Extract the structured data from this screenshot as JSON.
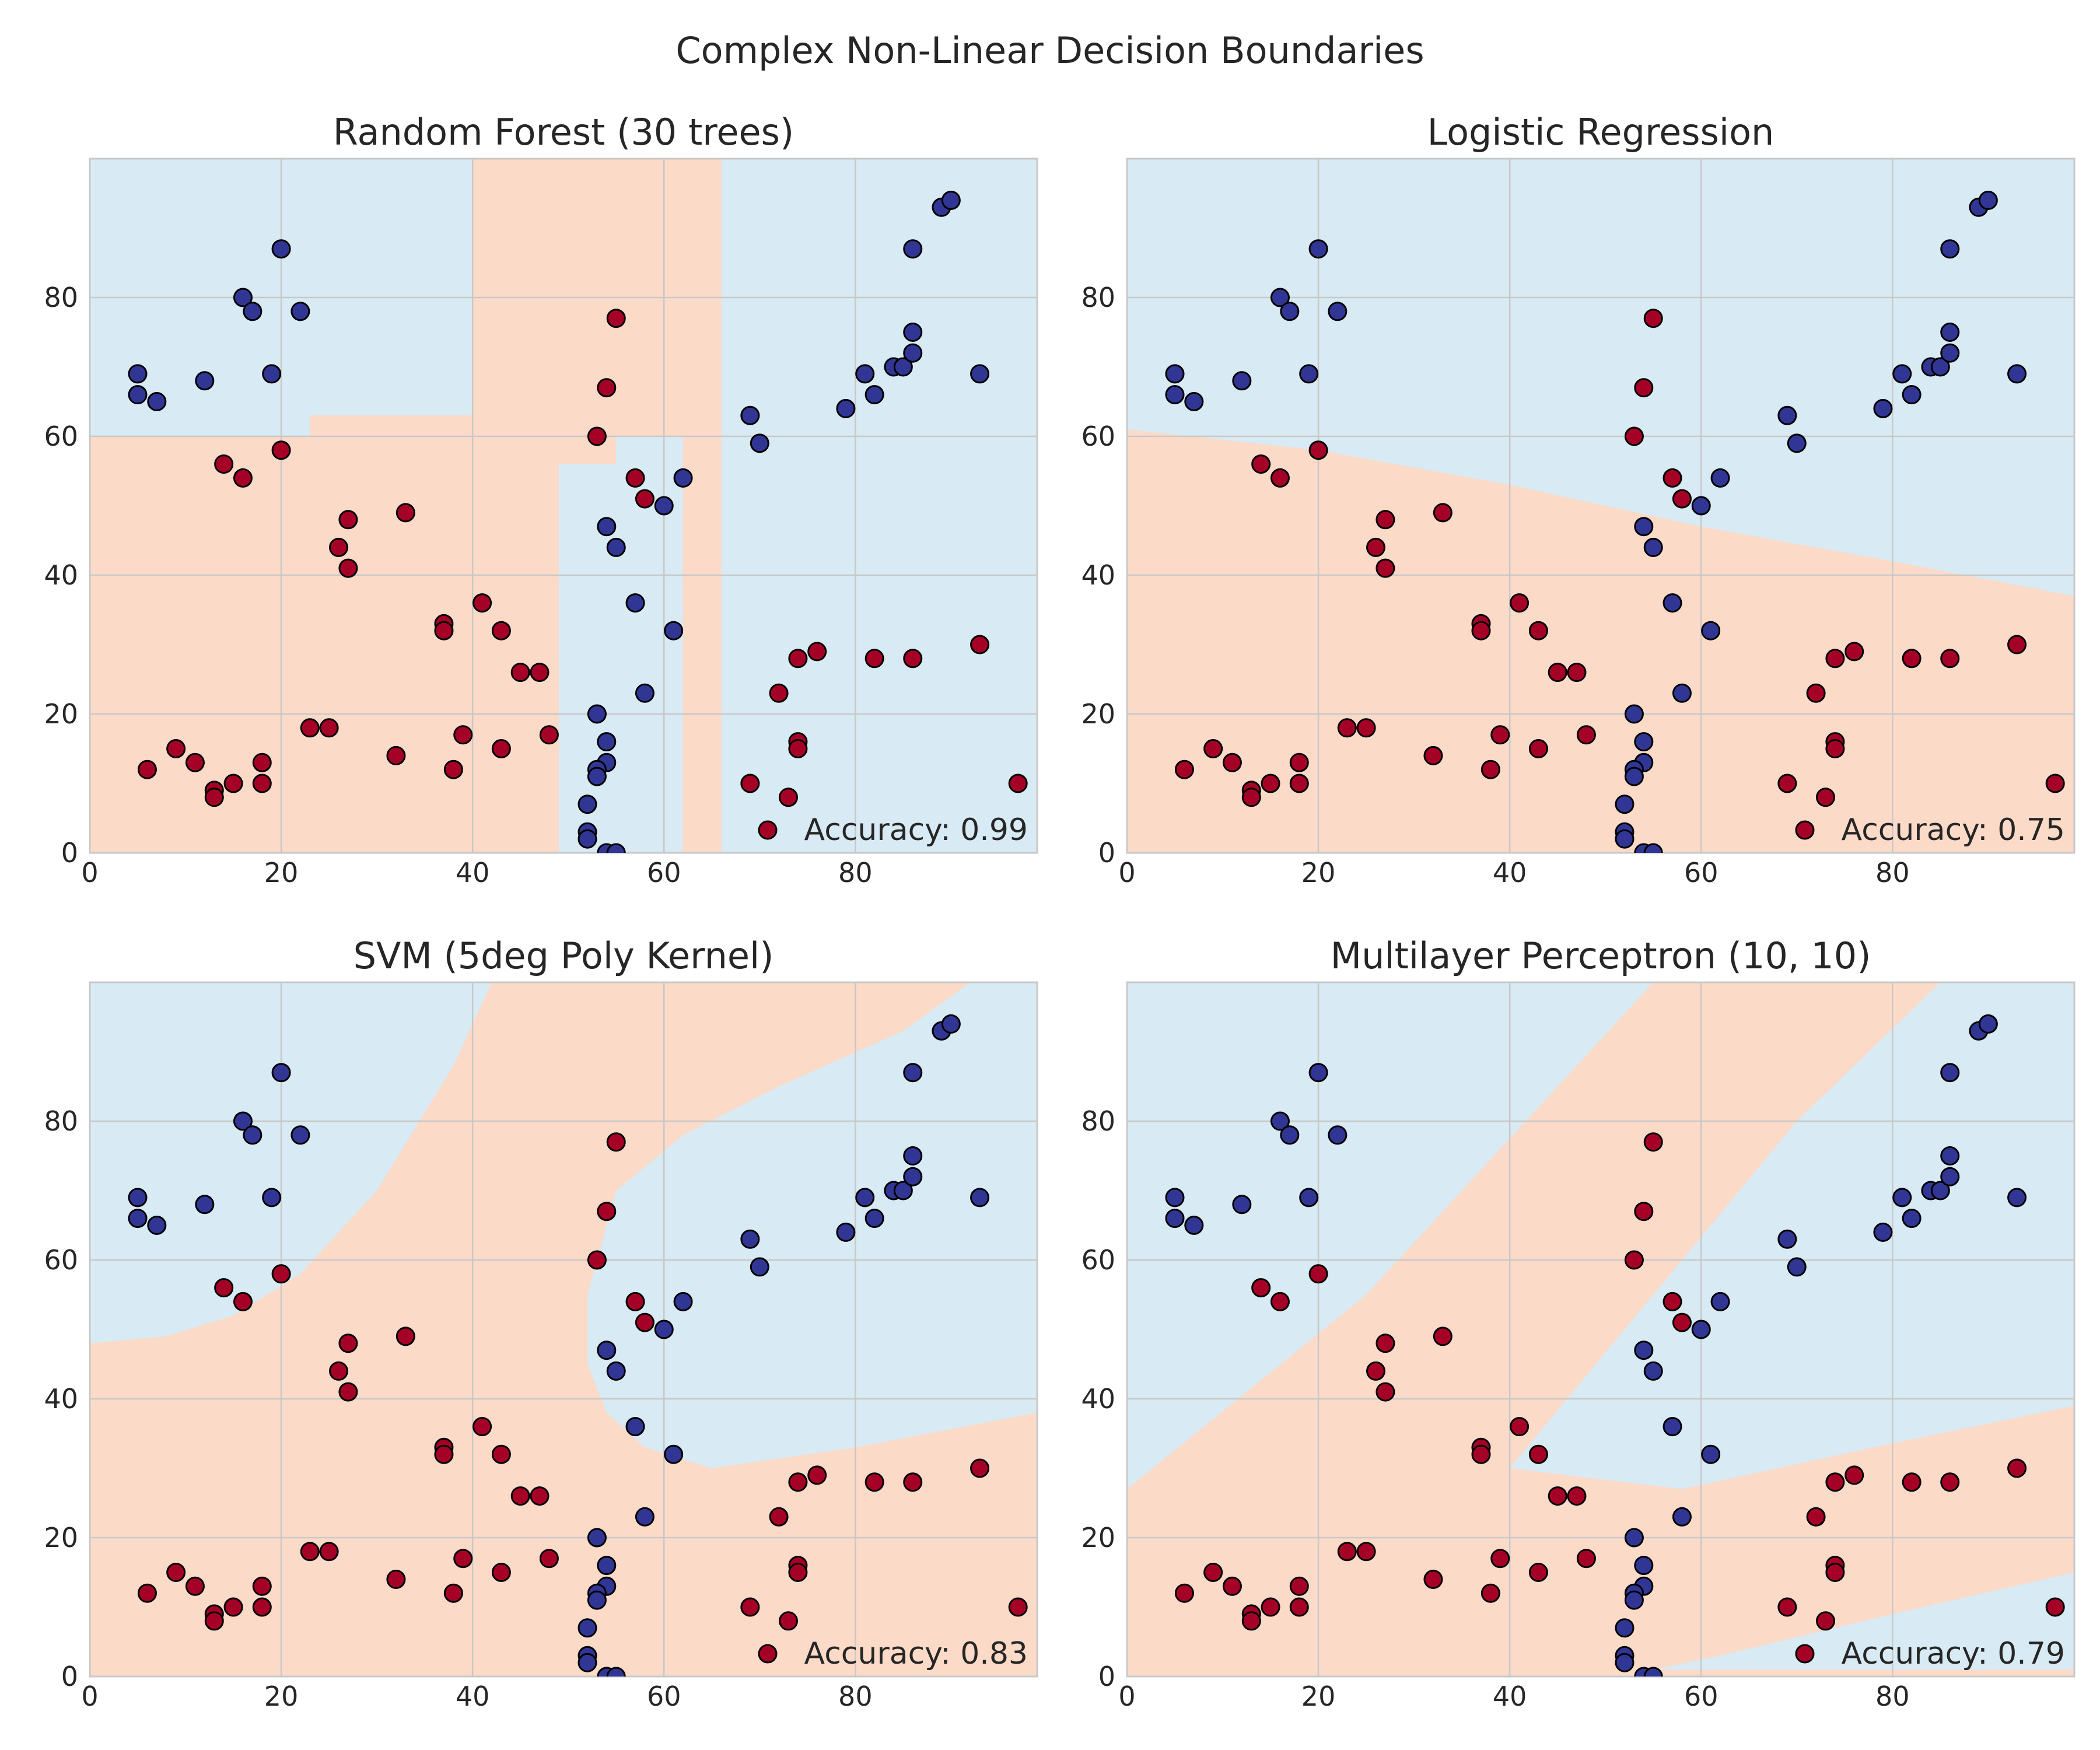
{
  "figure_title": "Complex Non-Linear Decision Boundaries",
  "colors": {
    "class0_region": "#d8eaf3",
    "class1_region": "#fcdac8",
    "class0_point": "#313695",
    "class1_point": "#a50026",
    "grid": "#c8c8c8",
    "spine": "#c8c8c8"
  },
  "legend_placement": "lower-right",
  "chart_data": [
    {
      "type": "scatter",
      "title": "Random Forest (30 trees)",
      "accuracy_label": "Accuracy: 0.99",
      "xlim": [
        0,
        99
      ],
      "ylim": [
        0,
        100
      ],
      "xticks": [
        "0",
        "20",
        "40",
        "60",
        "80"
      ],
      "yticks": [
        "0",
        "20",
        "40",
        "60",
        "80"
      ],
      "xlabel": "",
      "ylabel": "",
      "grid": true,
      "boundary": "rf"
    },
    {
      "type": "scatter",
      "title": "Logistic Regression",
      "accuracy_label": "Accuracy: 0.75",
      "xlim": [
        0,
        99
      ],
      "ylim": [
        0,
        100
      ],
      "xticks": [
        "0",
        "20",
        "40",
        "60",
        "80"
      ],
      "yticks": [
        "0",
        "20",
        "40",
        "60",
        "80"
      ],
      "xlabel": "",
      "ylabel": "",
      "grid": true,
      "boundary": "lr"
    },
    {
      "type": "scatter",
      "title": "SVM (5deg Poly Kernel)",
      "accuracy_label": "Accuracy: 0.83",
      "xlim": [
        0,
        99
      ],
      "ylim": [
        0,
        100
      ],
      "xticks": [
        "0",
        "20",
        "40",
        "60",
        "80"
      ],
      "yticks": [
        "0",
        "20",
        "40",
        "60",
        "80"
      ],
      "xlabel": "",
      "ylabel": "",
      "grid": true,
      "boundary": "svm"
    },
    {
      "type": "scatter",
      "title": "Multilayer Perceptron (10, 10)",
      "accuracy_label": "Accuracy: 0.79",
      "xlim": [
        0,
        99
      ],
      "ylim": [
        0,
        100
      ],
      "xticks": [
        "0",
        "20",
        "40",
        "60",
        "80"
      ],
      "yticks": [
        "0",
        "20",
        "40",
        "60",
        "80"
      ],
      "xlabel": "",
      "ylabel": "",
      "grid": true,
      "boundary": "mlp"
    }
  ],
  "points": {
    "class0": [
      [
        5,
        69
      ],
      [
        5,
        66
      ],
      [
        7,
        65
      ],
      [
        12,
        68
      ],
      [
        16,
        80
      ],
      [
        17,
        78
      ],
      [
        19,
        69
      ],
      [
        20,
        87
      ],
      [
        22,
        78
      ],
      [
        69,
        63
      ],
      [
        70,
        59
      ],
      [
        79,
        64
      ],
      [
        81,
        69
      ],
      [
        82,
        66
      ],
      [
        84,
        70
      ],
      [
        85,
        70
      ],
      [
        86,
        72
      ],
      [
        86,
        75
      ],
      [
        86,
        87
      ],
      [
        89,
        93
      ],
      [
        90,
        94
      ],
      [
        93,
        69
      ],
      [
        62,
        54
      ],
      [
        60,
        50
      ],
      [
        54,
        47
      ],
      [
        55,
        44
      ],
      [
        57,
        36
      ],
      [
        61,
        32
      ],
      [
        58,
        23
      ],
      [
        53,
        20
      ],
      [
        54,
        16
      ],
      [
        54,
        13
      ],
      [
        53,
        12
      ],
      [
        53,
        11
      ],
      [
        52,
        7
      ],
      [
        52,
        3
      ],
      [
        52,
        2
      ],
      [
        54,
        0
      ],
      [
        55,
        0
      ]
    ],
    "class1": [
      [
        14,
        56
      ],
      [
        16,
        54
      ],
      [
        20,
        58
      ],
      [
        27,
        48
      ],
      [
        26,
        44
      ],
      [
        27,
        41
      ],
      [
        33,
        49
      ],
      [
        55,
        77
      ],
      [
        54,
        67
      ],
      [
        53,
        60
      ],
      [
        57,
        54
      ],
      [
        58,
        51
      ],
      [
        37,
        33
      ],
      [
        37,
        32
      ],
      [
        41,
        36
      ],
      [
        43,
        32
      ],
      [
        45,
        26
      ],
      [
        47,
        26
      ],
      [
        39,
        17
      ],
      [
        43,
        15
      ],
      [
        48,
        17
      ],
      [
        38,
        12
      ],
      [
        32,
        14
      ],
      [
        6,
        12
      ],
      [
        9,
        15
      ],
      [
        11,
        13
      ],
      [
        13,
        9
      ],
      [
        13,
        8
      ],
      [
        15,
        10
      ],
      [
        18,
        10
      ],
      [
        18,
        13
      ],
      [
        23,
        18
      ],
      [
        25,
        18
      ],
      [
        72,
        23
      ],
      [
        74,
        28
      ],
      [
        76,
        29
      ],
      [
        74,
        16
      ],
      [
        74,
        15
      ],
      [
        73,
        8
      ],
      [
        69,
        10
      ],
      [
        82,
        28
      ],
      [
        86,
        28
      ],
      [
        93,
        30
      ],
      [
        97,
        10
      ]
    ]
  }
}
